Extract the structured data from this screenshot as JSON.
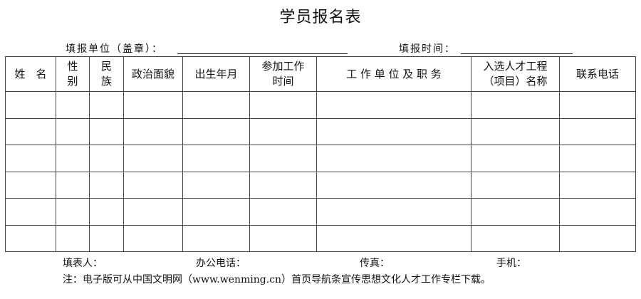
{
  "title": "学员报名表",
  "fill_unit_label": "填报单位（盖章）：",
  "fill_time_label": "填报时间：",
  "headers": [
    [
      "姓　名"
    ],
    [
      "性",
      "别"
    ],
    [
      "民",
      "族"
    ],
    [
      "政治面貌"
    ],
    [
      "出生年月"
    ],
    [
      "参加工作",
      "时间"
    ],
    [
      "工 作 单 位 及 职 务"
    ],
    [
      "入选人才工程",
      "（项目）名称"
    ],
    [
      "联系电话"
    ]
  ],
  "row_count": 6,
  "footer": {
    "filler": "填表人：",
    "office_phone": "办公电话：",
    "fax": "传真：",
    "mobile": "手机：",
    "note": "注：电子版可从中国文明网（www.wenming.cn）首页导航条宣传思想文化人才工作专栏下载。"
  }
}
